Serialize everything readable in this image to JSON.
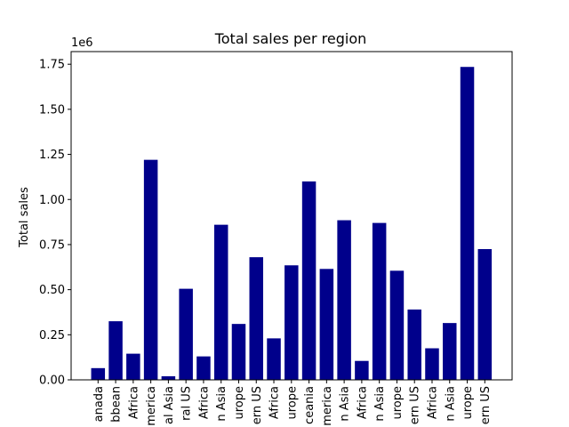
{
  "chart_data": {
    "type": "bar",
    "title": "Total sales per region",
    "ylabel": "Total sales",
    "xlabel": "",
    "y_offset_label": "1e6",
    "ylim": [
      0,
      1.82
    ],
    "yticks": [
      0.0,
      0.25,
      0.5,
      0.75,
      1.0,
      1.25,
      1.5,
      1.75
    ],
    "ytick_labels": [
      "0.00",
      "0.25",
      "0.50",
      "0.75",
      "1.00",
      "1.25",
      "1.50",
      "1.75"
    ],
    "bar_color": "#00008b",
    "grid": false,
    "categories": [
      "anada",
      "bbean",
      "Africa",
      "merica",
      "al Asia",
      "ral US",
      "Africa",
      "n Asia",
      "urope",
      "ern US",
      "Africa",
      "urope",
      "ceania",
      "merica",
      "n Asia",
      "Africa",
      "n Asia",
      "urope",
      "ern US",
      "Africa",
      "n Asia",
      "urope",
      "ern US"
    ],
    "values": [
      0.065,
      0.325,
      0.145,
      1.22,
      0.02,
      0.505,
      0.13,
      0.86,
      0.31,
      0.68,
      0.23,
      0.635,
      1.1,
      0.615,
      0.885,
      0.105,
      0.87,
      0.605,
      0.39,
      0.175,
      0.315,
      1.735,
      0.725
    ]
  }
}
